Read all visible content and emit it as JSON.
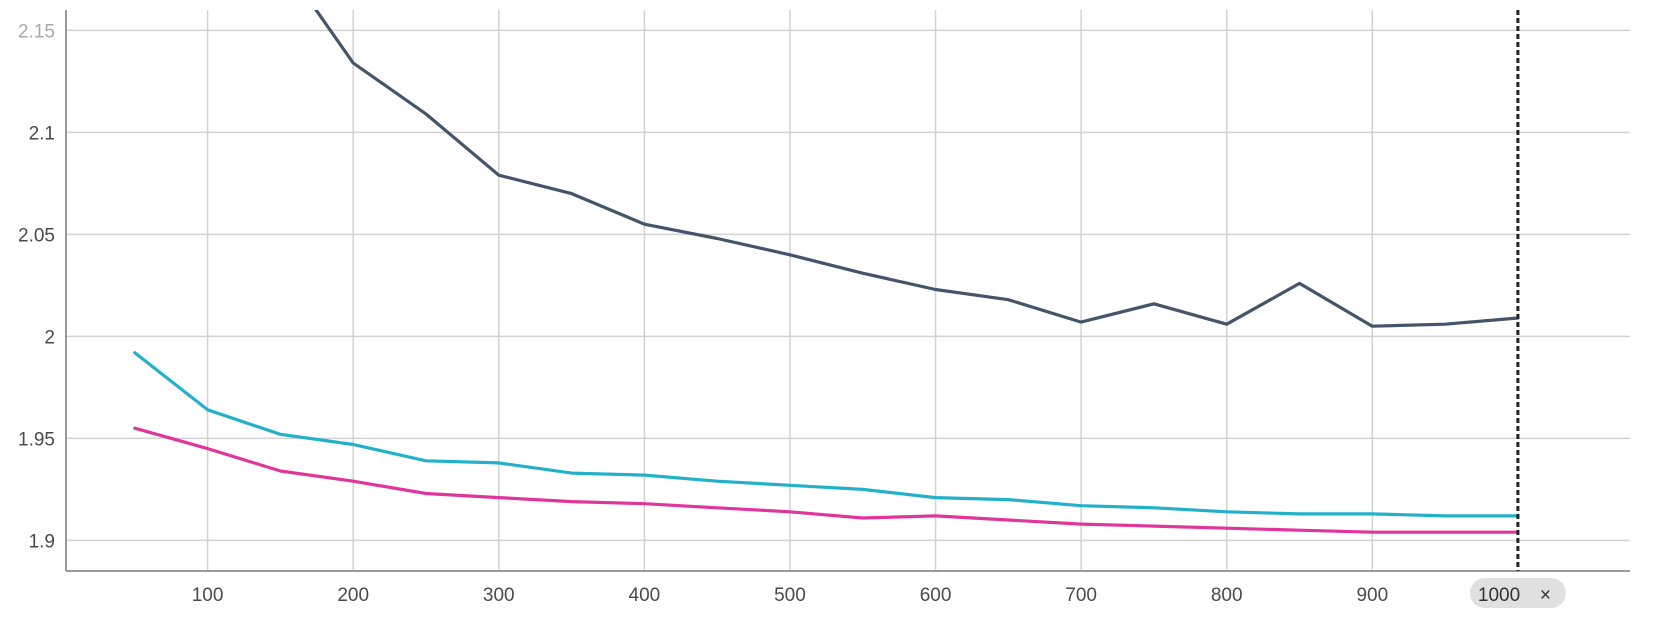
{
  "chart_data": {
    "type": "line",
    "title": "",
    "xlabel": "",
    "ylabel": "",
    "xlim": [
      0,
      1030
    ],
    "ylim": [
      1.885,
      2.16
    ],
    "x_ticks": [
      100,
      200,
      300,
      400,
      500,
      600,
      700,
      800,
      900
    ],
    "x_tick_labels": [
      "100",
      "200",
      "300",
      "400",
      "500",
      "600",
      "700",
      "800",
      "900"
    ],
    "y_ticks": [
      1.9,
      1.95,
      2,
      2.05,
      2.1,
      2.15
    ],
    "y_tick_labels": [
      "1.9",
      "1.95",
      "2",
      "2.05",
      "2.1",
      "2.15"
    ],
    "grid": true,
    "legend": "none",
    "cursor": {
      "x": 1000,
      "label": "1000",
      "close_symbol": "×"
    },
    "series": [
      {
        "color": "#44546a",
        "x": [
          150,
          200,
          250,
          300,
          350,
          400,
          450,
          500,
          550,
          600,
          650,
          700,
          750,
          800,
          850,
          900,
          950,
          1000
        ],
        "values": [
          2.185,
          2.134,
          2.109,
          2.079,
          2.07,
          2.055,
          2.048,
          2.04,
          2.031,
          2.023,
          2.018,
          2.007,
          2.016,
          2.006,
          2.026,
          2.005,
          2.006,
          2.009
        ]
      },
      {
        "color": "#23b1c9",
        "x": [
          50,
          100,
          150,
          200,
          250,
          300,
          350,
          400,
          450,
          500,
          550,
          600,
          650,
          700,
          750,
          800,
          850,
          900,
          950,
          1000
        ],
        "values": [
          1.992,
          1.964,
          1.952,
          1.947,
          1.939,
          1.938,
          1.933,
          1.932,
          1.929,
          1.927,
          1.925,
          1.921,
          1.92,
          1.917,
          1.916,
          1.914,
          1.913,
          1.913,
          1.912,
          1.912
        ]
      },
      {
        "color": "#e0359a",
        "x": [
          50,
          100,
          150,
          200,
          250,
          300,
          350,
          400,
          450,
          500,
          550,
          600,
          650,
          700,
          750,
          800,
          850,
          900,
          950,
          1000
        ],
        "values": [
          1.955,
          1.945,
          1.934,
          1.929,
          1.923,
          1.921,
          1.919,
          1.918,
          1.916,
          1.914,
          1.911,
          1.912,
          1.91,
          1.908,
          1.907,
          1.906,
          1.905,
          1.904,
          1.904,
          1.904
        ]
      }
    ]
  }
}
